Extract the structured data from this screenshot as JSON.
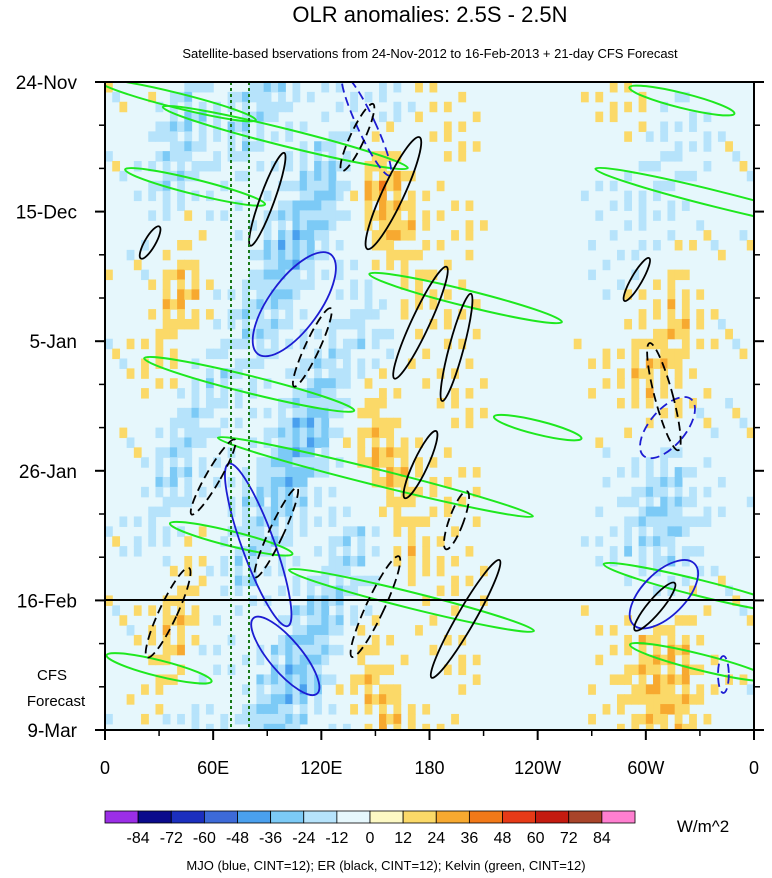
{
  "chart_data": {
    "type": "heatmap",
    "title": "OLR anomalies: 2.5S - 2.5N",
    "subtitle": "Satellite-based bservations from 24-Nov-2012 to 16-Feb-2013 + 21-day CFS Forecast",
    "x_tick_labels": [
      "0",
      "60E",
      "120E",
      "180",
      "120W",
      "60W",
      "0"
    ],
    "x_ticks_deg": [
      0,
      60,
      120,
      180,
      240,
      300,
      360
    ],
    "y_tick_labels": [
      "24-Nov",
      "15-Dec",
      "5-Jan",
      "26-Jan",
      "16-Feb",
      "9-Mar"
    ],
    "y_ticks_day": [
      0,
      21,
      42,
      63,
      84,
      105
    ],
    "forecast_start_label": "16-Feb",
    "forecast_label_line1": "CFS",
    "forecast_label_line2": "Forecast",
    "vertical_reference_lon": [
      70,
      80
    ],
    "colorbar_levels": [
      "-84",
      "-72",
      "-60",
      "-48",
      "-36",
      "-24",
      "-12",
      "0",
      "12",
      "24",
      "36",
      "48",
      "60",
      "72",
      "84"
    ],
    "colorbar_colors": [
      "#9b2ee6",
      "#0a0a8c",
      "#1c2fbe",
      "#3d6ad8",
      "#4aa0ee",
      "#7ccaf6",
      "#b6e3fb",
      "#e6f7fc",
      "#fdf9c4",
      "#fbd968",
      "#f7a930",
      "#f27918",
      "#e63a17",
      "#c41b10",
      "#a8442a",
      "#ff7fd0"
    ],
    "units": "W/m^2",
    "footer": "MJO (blue, CINT=12); ER (black, CINT=12); Kelvin (green, CINT=12)",
    "contour_colors": {
      "mjo": "#1c1cd2",
      "er": "#000000",
      "kelvin": "#1ee81e"
    }
  }
}
